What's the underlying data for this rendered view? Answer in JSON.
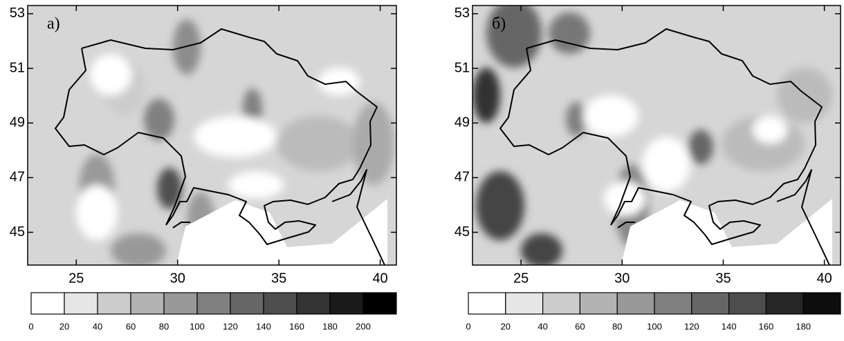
{
  "panels": [
    {
      "label": "а)",
      "xlim": [
        22.6,
        40.8
      ],
      "ylim": [
        43.8,
        53.3
      ],
      "xticks": [
        25,
        30,
        35,
        40
      ],
      "yticks": [
        45,
        47,
        49,
        51,
        53
      ],
      "colorbar": {
        "clim": [
          0,
          220
        ],
        "levels": [
          0,
          20,
          40,
          60,
          80,
          100,
          120,
          140,
          160,
          180,
          200
        ],
        "colors": [
          "#ffffff",
          "#e6e6e6",
          "#cccccc",
          "#b3b3b3",
          "#999999",
          "#808080",
          "#666666",
          "#4d4d4d",
          "#333333",
          "#1a1a1a",
          "#000000"
        ]
      }
    },
    {
      "label": "б)",
      "xlim": [
        22.6,
        40.8
      ],
      "ylim": [
        43.8,
        53.3
      ],
      "xticks": [
        25,
        30,
        35,
        40
      ],
      "yticks": [
        45,
        47,
        49,
        51,
        53
      ],
      "colorbar": {
        "clim": [
          0,
          200
        ],
        "levels": [
          0,
          20,
          40,
          60,
          80,
          100,
          120,
          140,
          160,
          180
        ],
        "colors": [
          "#ffffff",
          "#e6e6e6",
          "#cccccc",
          "#b3b3b3",
          "#999999",
          "#808080",
          "#666666",
          "#4d4d4d",
          "#262626",
          "#0d0d0d"
        ]
      }
    }
  ]
}
